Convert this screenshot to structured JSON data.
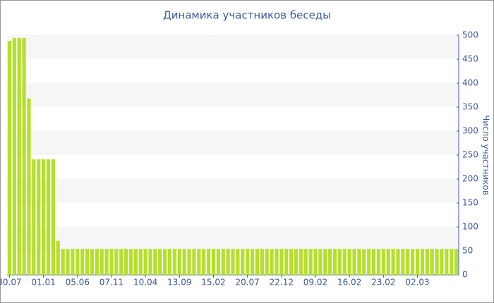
{
  "chart_data": {
    "type": "bar",
    "title": "Динамика участников беседы",
    "y_label": "Число участников",
    "categories": [
      "30.07",
      null,
      null,
      null,
      null,
      null,
      null,
      "01.01",
      null,
      null,
      null,
      null,
      null,
      null,
      "05.06",
      null,
      null,
      null,
      null,
      null,
      null,
      "07.11",
      null,
      null,
      null,
      null,
      null,
      null,
      "10.04",
      null,
      null,
      null,
      null,
      null,
      null,
      "13.09",
      null,
      null,
      null,
      null,
      null,
      null,
      "15.02",
      null,
      null,
      null,
      null,
      null,
      null,
      "20.07",
      null,
      null,
      null,
      null,
      null,
      null,
      "22.12",
      null,
      null,
      null,
      null,
      null,
      null,
      "09.02",
      null,
      null,
      null,
      null,
      null,
      null,
      "16.02",
      null,
      null,
      null,
      null,
      null,
      null,
      "23.02",
      null,
      null,
      null,
      null,
      null,
      null,
      "02.03",
      null,
      null,
      null,
      null,
      null,
      null,
      null,
      null
    ],
    "values": [
      488,
      494,
      494,
      494,
      368,
      241,
      241,
      241,
      241,
      241,
      71,
      54,
      54,
      54,
      54,
      54,
      54,
      54,
      54,
      54,
      54,
      54,
      54,
      54,
      54,
      54,
      54,
      54,
      54,
      54,
      54,
      54,
      54,
      54,
      54,
      54,
      54,
      54,
      54,
      54,
      54,
      54,
      54,
      54,
      54,
      54,
      54,
      54,
      54,
      54,
      54,
      54,
      54,
      54,
      54,
      54,
      54,
      54,
      54,
      54,
      54,
      54,
      54,
      54,
      54,
      54,
      54,
      54,
      54,
      54,
      54,
      54,
      54,
      54,
      54,
      54,
      54,
      54,
      54,
      54,
      54,
      54,
      54,
      54,
      54,
      54,
      54,
      54,
      54,
      54,
      54,
      54,
      54
    ],
    "color": "#b4e02c",
    "ylim": [
      0,
      500
    ],
    "yticks": [
      0,
      50,
      100,
      150,
      200,
      250,
      300,
      350,
      400,
      450,
      500
    ],
    "grid": true,
    "y_axis_side": "right"
  }
}
